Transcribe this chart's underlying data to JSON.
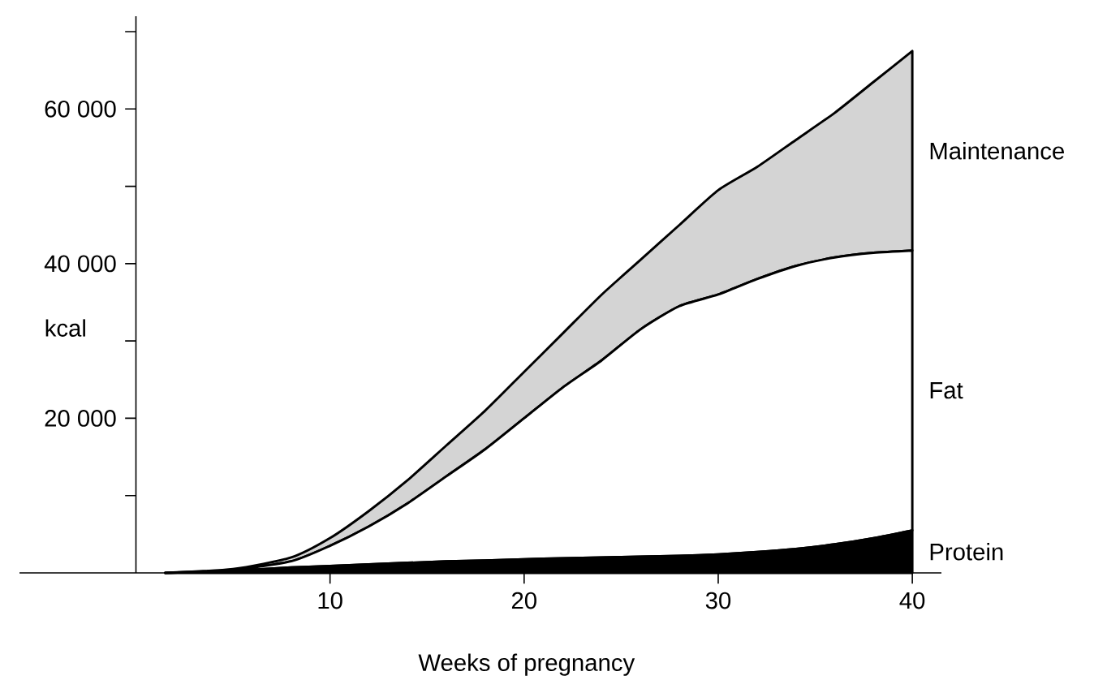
{
  "chart_data": {
    "type": "area",
    "stacked": true,
    "xlabel": "Weeks of pregnancy",
    "ylabel": "kcal",
    "x": [
      1.5,
      5,
      8,
      10,
      12,
      14,
      16,
      18,
      20,
      22,
      24,
      26,
      28,
      30,
      32,
      34,
      36,
      38,
      40
    ],
    "series": [
      {
        "name": "Protein",
        "color": "#000000",
        "values": [
          0,
          300,
          700,
          900,
          1100,
          1300,
          1500,
          1600,
          1750,
          1900,
          2000,
          2100,
          2200,
          2400,
          2700,
          3100,
          3700,
          4500,
          5500
        ]
      },
      {
        "name": "Fat",
        "color": "#ffffff",
        "values": [
          0,
          100,
          800,
          2600,
          4900,
          7700,
          11000,
          14400,
          18250,
          22100,
          25500,
          29400,
          32300,
          33600,
          35300,
          36600,
          37100,
          36900,
          36200
        ]
      },
      {
        "name": "Maintenance",
        "color": "#d4d4d4",
        "values": [
          0,
          100,
          500,
          1000,
          2000,
          3000,
          4000,
          5000,
          6000,
          7000,
          8500,
          9000,
          10500,
          13500,
          14500,
          16300,
          18700,
          22100,
          25800
        ]
      }
    ],
    "xlim": [
      -6,
      41.5
    ],
    "ylim": [
      0,
      72000
    ],
    "xticks": [
      10,
      20,
      30,
      40
    ],
    "yticks": [
      {
        "value": 10000,
        "label": null
      },
      {
        "value": 20000,
        "label": "20 000"
      },
      {
        "value": 30000,
        "label": null
      },
      {
        "value": 40000,
        "label": "40 000"
      },
      {
        "value": 50000,
        "label": null
      },
      {
        "value": 60000,
        "label": "60 000"
      },
      {
        "value": 70000,
        "label": null
      }
    ],
    "legend": false
  }
}
